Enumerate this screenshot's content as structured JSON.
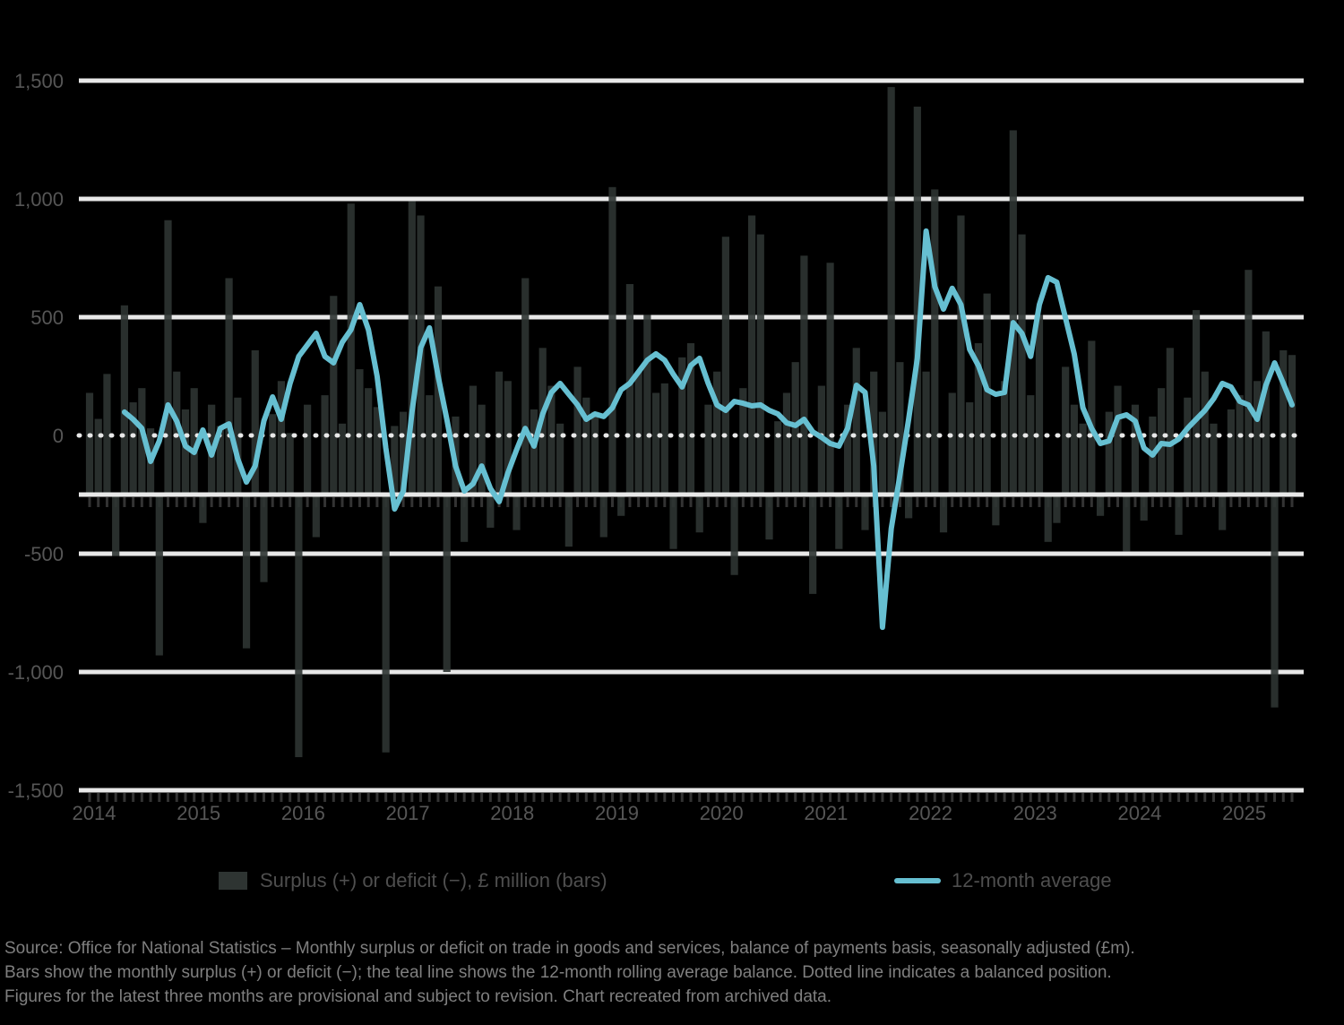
{
  "background": "#000000",
  "colors": {
    "bar": "#2e3432",
    "line": "#66bfd1",
    "gridline": "#e8e8e8",
    "axis_label": "#565656",
    "tick": "#333333",
    "legend_text": "#4e4e4e",
    "footer_text": "#7f7f7f"
  },
  "legend": {
    "bar_label": "Surplus (+) or deficit (−), £ million (bars)",
    "line_label": "12-month average"
  },
  "footer": {
    "line1": "Source: Office for National Statistics – Monthly surplus or deficit on trade in goods and services, balance of payments basis, seasonally adjusted (£m).",
    "line2": "Bars show the monthly surplus (+) or deficit (−); the teal line shows the 12-month rolling average balance. Dotted line indicates a balanced position.",
    "line3": "Figures for the latest three months are provisional and subject to revision. Chart recreated from archived data."
  },
  "chart_data": {
    "type": "bar+line",
    "title": "",
    "x_unit": "month",
    "start_year": 2014,
    "year_labels": [
      "2014",
      "2015",
      "2016",
      "2017",
      "2018",
      "2019",
      "2020",
      "2021",
      "2022",
      "2023",
      "2024",
      "2025"
    ],
    "y_axis": {
      "tick_labels": [
        "1,500",
        "1,000",
        "500",
        "0",
        "-500",
        "-1,000",
        "-1,500"
      ],
      "tick_values": [
        1500,
        1000,
        500,
        0,
        -500,
        -1000,
        -1500
      ],
      "ylim": [
        -1500,
        1500
      ],
      "zero_line_style": "dotted",
      "bar_baseline_value": -250,
      "grid": true
    },
    "legend_position": "bottom",
    "series": [
      {
        "name": "Surplus (+) or deficit (−), £ million (bars)",
        "type": "bar",
        "color": "#2e3432",
        "values": [
          430,
          320,
          510,
          -260,
          800,
          390,
          450,
          280,
          -680,
          1160,
          520,
          360,
          450,
          -120,
          380,
          290,
          915,
          410,
          -650,
          610,
          -370,
          340,
          480,
          260,
          -1110,
          380,
          -180,
          420,
          840,
          300,
          1230,
          530,
          450,
          370,
          -1090,
          290,
          350,
          1240,
          1180,
          420,
          880,
          -750,
          330,
          -200,
          460,
          380,
          -140,
          520,
          480,
          -150,
          915,
          360,
          620,
          460,
          300,
          -220,
          540,
          410,
          350,
          -180,
          1300,
          -90,
          890,
          520,
          760,
          430,
          470,
          -230,
          580,
          640,
          -160,
          380,
          520,
          1090,
          -340,
          450,
          1180,
          1100,
          -190,
          310,
          430,
          560,
          1010,
          -420,
          460,
          980,
          -230,
          380,
          620,
          -150,
          520,
          350,
          1723,
          560,
          -100,
          1640,
          520,
          1290,
          -160,
          430,
          1180,
          390,
          640,
          850,
          -130,
          480,
          1540,
          1100,
          420,
          760,
          -200,
          -120,
          540,
          380,
          300,
          650,
          -90,
          350,
          460,
          -240,
          380,
          -110,
          330,
          450,
          620,
          -170,
          410,
          780,
          520,
          300,
          -150,
          360,
          420,
          950,
          480,
          690,
          -900,
          610,
          590
        ]
      },
      {
        "name": "12-month average",
        "type": "line",
        "color": "#66bfd1",
        "values": [
          null,
          null,
          null,
          null,
          99,
          68,
          30,
          -110,
          -23,
          129,
          61,
          -45,
          -72,
          23,
          -83,
          30,
          49,
          -99,
          -197,
          -129,
          61,
          163,
          68,
          220,
          334,
          383,
          432,
          334,
          307,
          394,
          447,
          553,
          447,
          250,
          -53,
          -311,
          -235,
          99,
          371,
          455,
          250,
          68,
          -129,
          -235,
          -205,
          -129,
          -224,
          -280,
          -159,
          -61,
          30,
          -45,
          91,
          182,
          220,
          174,
          129,
          68,
          91,
          80,
          117,
          193,
          220,
          269,
          318,
          345,
          318,
          258,
          205,
          296,
          326,
          220,
          129,
          106,
          144,
          136,
          125,
          129,
          106,
          91,
          53,
          42,
          68,
          15,
          -8,
          -34,
          -45,
          30,
          212,
          182,
          -129,
          -811,
          -394,
          -167,
          68,
          326,
          864,
          629,
          534,
          622,
          553,
          364,
          296,
          193,
          174,
          182,
          477,
          432,
          334,
          553,
          667,
          648,
          496,
          345,
          117,
          30,
          -34,
          -23,
          76,
          87,
          61,
          -53,
          -83,
          -34,
          -38,
          -15,
          30,
          68,
          106,
          155,
          220,
          205,
          144,
          129,
          68,
          212,
          307,
          220,
          129
        ]
      }
    ]
  }
}
